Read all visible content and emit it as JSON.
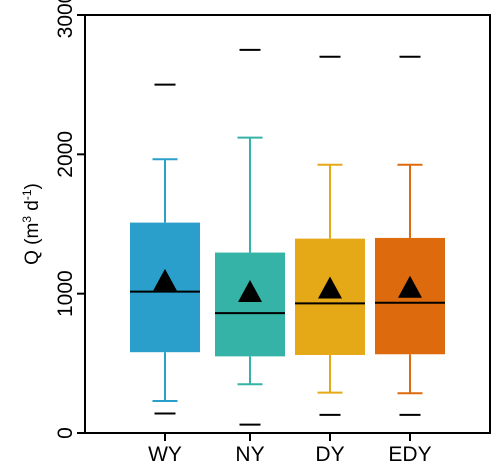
{
  "chart_data": {
    "type": "box",
    "ylabel": {
      "prefix": "Q (m",
      "sup1": "3",
      "middle": " d",
      "sup2": "-1",
      "suffix": ")"
    },
    "ylim": [
      0,
      3000
    ],
    "yticks": [
      {
        "value": 0,
        "label": "0"
      },
      {
        "value": 1000,
        "label": "1000"
      },
      {
        "value": 2000,
        "label": "2000"
      },
      {
        "value": 3000,
        "label": "3000"
      }
    ],
    "grid": false,
    "legend": "none",
    "categories": [
      "WY",
      "NY",
      "DY",
      "EDY"
    ],
    "boxes": [
      {
        "name": "WY",
        "color": "#2a9fcb",
        "whisker_low": 230,
        "q1": 580,
        "median": 1015,
        "q3": 1510,
        "whisker_high": 1965,
        "mean": 1085,
        "outlier_low": 140,
        "outlier_high": 2500
      },
      {
        "name": "NY",
        "color": "#35b3a6",
        "whisker_low": 350,
        "q1": 550,
        "median": 860,
        "q3": 1295,
        "whisker_high": 2120,
        "mean": 1005,
        "outlier_low": 60,
        "outlier_high": 2750
      },
      {
        "name": "DY",
        "color": "#e5a817",
        "whisker_low": 290,
        "q1": 560,
        "median": 930,
        "q3": 1395,
        "whisker_high": 1925,
        "mean": 1030,
        "outlier_low": 130,
        "outlier_high": 2700
      },
      {
        "name": "EDY",
        "color": "#dd6a0c",
        "whisker_low": 285,
        "q1": 565,
        "median": 935,
        "q3": 1400,
        "whisker_high": 1925,
        "mean": 1035,
        "outlier_low": 130,
        "outlier_high": 2700
      }
    ]
  }
}
